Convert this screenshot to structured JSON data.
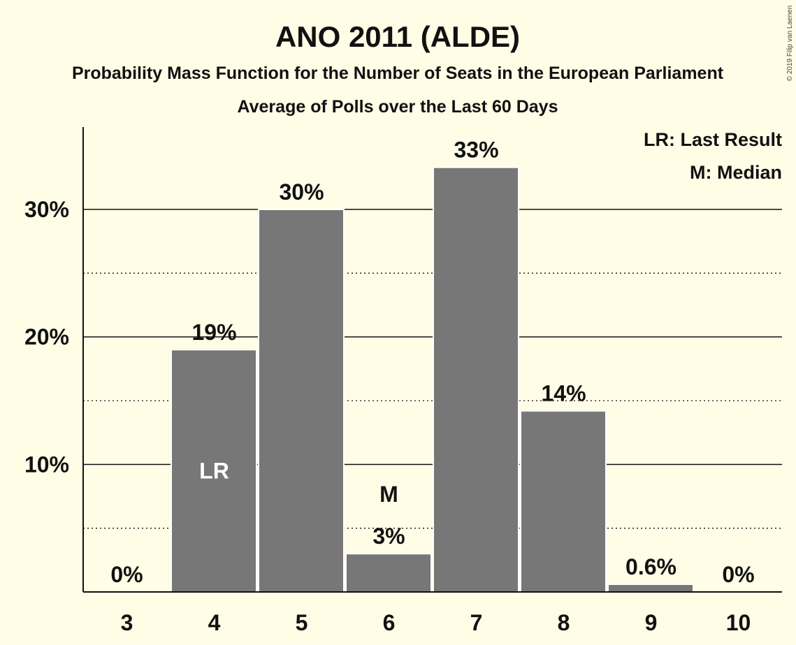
{
  "copyright": "© 2019 Filip van Laenen",
  "colors": {
    "background": "#FFFDE6",
    "bar": "#777777",
    "text": "#111111",
    "inside_label": "#FFFFFF"
  },
  "chart_data": {
    "type": "bar",
    "title": "ANO 2011 (ALDE)",
    "subtitle": "Probability Mass Function for the Number of Seats in the European Parliament",
    "subtitle2": "Average of Polls over the Last 60 Days",
    "categories": [
      "3",
      "4",
      "5",
      "6",
      "7",
      "8",
      "9",
      "10"
    ],
    "values": [
      0,
      19,
      30,
      3,
      33.3,
      14.2,
      0.6,
      0
    ],
    "value_labels": [
      "0%",
      "19%",
      "30%",
      "3%",
      "33%",
      "14%",
      "0.6%",
      "0%"
    ],
    "markers": [
      {
        "category": "4",
        "label": "LR",
        "placement": "inside"
      },
      {
        "category": "6",
        "label": "M",
        "placement": "above"
      }
    ],
    "legend": [
      "LR: Last Result",
      "M: Median"
    ],
    "legend_placement": "top-right",
    "ylim": [
      0,
      36.5
    ],
    "yticks": [
      10,
      20,
      30
    ],
    "ytick_labels": [
      "10%",
      "20%",
      "30%"
    ],
    "minor_gridlines": [
      5,
      15,
      25
    ],
    "xlabel": "",
    "ylabel": ""
  }
}
